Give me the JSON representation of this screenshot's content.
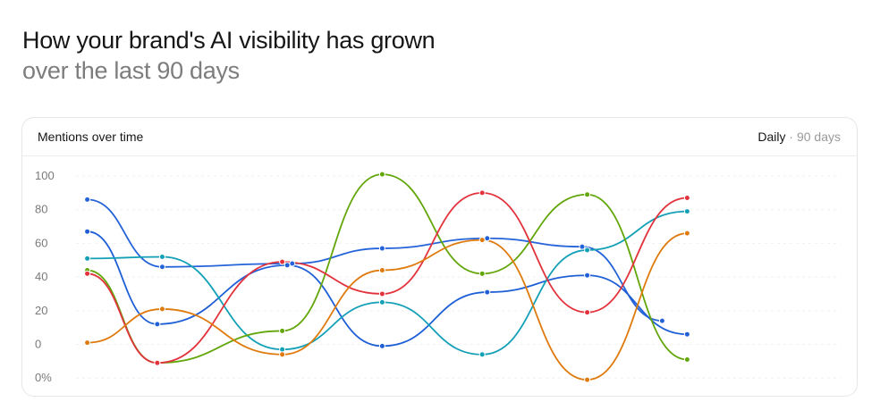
{
  "heading": {
    "title": "How your brand's AI visibility has grown",
    "subtitle": "over the last 90 days"
  },
  "card": {
    "title": "Mentions over time",
    "range_primary": "Daily",
    "range_separator": "·",
    "range_secondary": "90 days"
  },
  "chart_data": {
    "type": "line",
    "title": "Mentions over time",
    "xlabel": "",
    "ylabel": "",
    "y_tick_labels": [
      "100",
      "80",
      "60",
      "40",
      "20",
      "0",
      "0%"
    ],
    "grid": true,
    "legend": "none",
    "x": [
      1,
      2,
      3,
      4,
      5,
      6,
      7
    ],
    "x_labels_visible": false,
    "series": [
      {
        "color": "#2563d9",
        "points": [
          [
            0.05,
            86
          ],
          [
            0.8,
            46
          ],
          [
            2.1,
            48
          ],
          [
            3.0,
            57
          ],
          [
            4.05,
            63
          ],
          [
            5.0,
            58
          ],
          [
            5.8,
            14
          ]
        ]
      },
      {
        "color": "#1f5fd6",
        "points": [
          [
            0.05,
            67
          ],
          [
            0.75,
            12
          ],
          [
            2.05,
            47
          ],
          [
            3.0,
            -1
          ],
          [
            4.05,
            31
          ],
          [
            5.05,
            41
          ],
          [
            6.05,
            6
          ]
        ]
      },
      {
        "color": "#13a0b7",
        "points": [
          [
            0.05,
            51
          ],
          [
            0.8,
            52
          ],
          [
            2.0,
            -3
          ],
          [
            3.0,
            25
          ],
          [
            4.0,
            -6
          ],
          [
            5.05,
            56
          ],
          [
            6.05,
            79
          ]
        ]
      },
      {
        "color": "#62a60a",
        "points": [
          [
            0.05,
            44
          ],
          [
            0.75,
            -11
          ],
          [
            2.0,
            8
          ],
          [
            3.0,
            101
          ],
          [
            4.0,
            42
          ],
          [
            5.05,
            89
          ],
          [
            6.05,
            -9
          ]
        ]
      },
      {
        "color": "#e2333c",
        "points": [
          [
            0.05,
            42
          ],
          [
            0.75,
            -11
          ],
          [
            2.0,
            49
          ],
          [
            3.0,
            30
          ],
          [
            4.0,
            90
          ],
          [
            5.05,
            19
          ],
          [
            6.05,
            87
          ]
        ]
      },
      {
        "color": "#df7a0c",
        "points": [
          [
            0.05,
            1
          ],
          [
            0.8,
            21
          ],
          [
            2.0,
            -6
          ],
          [
            3.0,
            44
          ],
          [
            4.0,
            62
          ],
          [
            5.05,
            -21
          ],
          [
            6.05,
            66
          ]
        ]
      }
    ]
  }
}
